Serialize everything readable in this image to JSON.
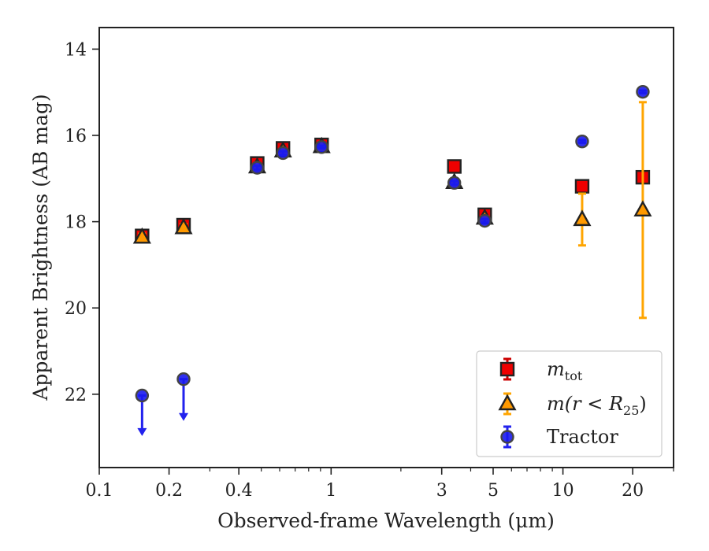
{
  "chart_data": {
    "type": "scatter",
    "title": "",
    "xlabel": "Observed-frame Wavelength (μm)",
    "ylabel": "Apparent Brightness (AB mag)",
    "xscale": "log",
    "yinverted": true,
    "xlim": [
      0.1,
      30
    ],
    "ylim": [
      23.7,
      13.5
    ],
    "x_ticks": [
      0.1,
      0.2,
      0.4,
      1,
      3,
      5,
      10,
      20
    ],
    "x_tick_labels": [
      "0.1",
      "0.2",
      "0.4",
      "1",
      "3",
      "5",
      "10",
      "20"
    ],
    "x_minor_ticks": [
      0.3,
      0.5,
      0.6,
      0.7,
      0.8,
      0.9,
      2,
      4,
      6,
      7,
      8,
      9,
      30
    ],
    "y_ticks": [
      14,
      16,
      18,
      20,
      22
    ],
    "y_tick_labels": [
      "14",
      "16",
      "18",
      "20",
      "22"
    ],
    "grid": false,
    "legend_position": "bottom-right",
    "series": [
      {
        "name": "m_tot",
        "label_main": "m",
        "label_sub": "tot",
        "marker": "square",
        "color": "#ee0000",
        "edge": "#222222",
        "errcolor": "#cc0000",
        "points": [
          {
            "x": 0.153,
            "y": 18.33,
            "err": 0.1
          },
          {
            "x": 0.231,
            "y": 18.08,
            "err": 0.1
          },
          {
            "x": 0.48,
            "y": 16.65,
            "err": 0.08
          },
          {
            "x": 0.62,
            "y": 16.3,
            "err": 0.08
          },
          {
            "x": 0.91,
            "y": 16.22,
            "err": 0.05
          },
          {
            "x": 3.4,
            "y": 16.72,
            "err": 0.05
          },
          {
            "x": 4.6,
            "y": 17.84,
            "err": 0.1
          },
          {
            "x": 12.1,
            "y": 17.18,
            "err": 0.05
          },
          {
            "x": 22.1,
            "y": 16.97,
            "err": 0.05
          }
        ]
      },
      {
        "name": "m(r<R_25)",
        "label_main": "m(r < R",
        "label_sub": "25",
        "label_end": ")",
        "marker": "triangle",
        "color": "#ff9900",
        "edge": "#222222",
        "errcolor": "#ffa500",
        "points": [
          {
            "x": 0.153,
            "y": 18.36,
            "err": 0.08
          },
          {
            "x": 0.231,
            "y": 18.14,
            "err": 0.08
          },
          {
            "x": 0.48,
            "y": 16.73,
            "err": 0.05
          },
          {
            "x": 0.62,
            "y": 16.36,
            "err": 0.05
          },
          {
            "x": 0.91,
            "y": 16.26,
            "err": 0.04
          },
          {
            "x": 3.4,
            "y": 17.09,
            "err": 0.05
          },
          {
            "x": 4.6,
            "y": 17.92,
            "err": 0.05
          },
          {
            "x": 12.1,
            "y": 17.95,
            "err": 0.6
          },
          {
            "x": 22.1,
            "y": 17.73,
            "err": 2.5
          }
        ]
      },
      {
        "name": "Tractor",
        "marker": "circle",
        "color": "#1a1aee",
        "edge": "#444444",
        "errcolor": "#2222ee",
        "points": [
          {
            "x": 0.153,
            "y": 22.03,
            "upper_limit": true,
            "arrow_to": 22.95
          },
          {
            "x": 0.231,
            "y": 21.65,
            "upper_limit": true,
            "arrow_to": 22.6
          },
          {
            "x": 0.48,
            "y": 16.75,
            "err": 0.04
          },
          {
            "x": 0.62,
            "y": 16.41,
            "err": 0.04
          },
          {
            "x": 0.91,
            "y": 16.27,
            "err": 0.03
          },
          {
            "x": 3.4,
            "y": 17.1,
            "err": 0.04
          },
          {
            "x": 4.6,
            "y": 17.98,
            "err": 0.04
          },
          {
            "x": 12.1,
            "y": 16.14,
            "err": 0.03
          },
          {
            "x": 22.1,
            "y": 14.99,
            "err": 0.03
          }
        ]
      }
    ]
  }
}
